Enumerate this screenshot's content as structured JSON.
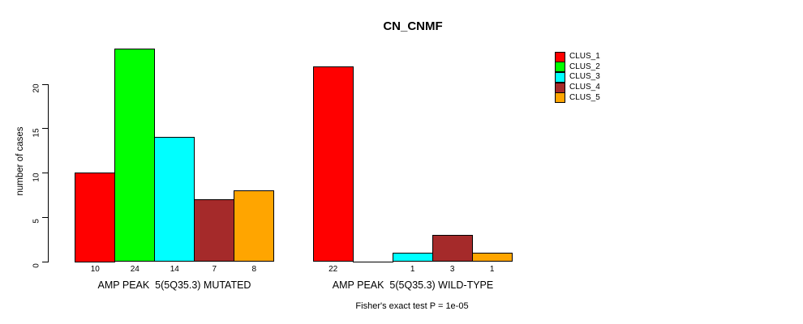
{
  "chart_data": {
    "type": "bar",
    "title": "CN_CNMF",
    "ylabel": "number of cases",
    "ylim": [
      0,
      24
    ],
    "yticks": [
      0,
      5,
      10,
      15,
      20
    ],
    "grid": false,
    "legend_position": "right",
    "series": [
      {
        "name": "CLUS_1",
        "color": "#ff0000"
      },
      {
        "name": "CLUS_2",
        "color": "#00ff00"
      },
      {
        "name": "CLUS_3",
        "color": "#00ffff"
      },
      {
        "name": "CLUS_4",
        "color": "#a52a2a"
      },
      {
        "name": "CLUS_5",
        "color": "#ffa500"
      }
    ],
    "groups": [
      {
        "label": "AMP PEAK  5(5Q35.3) MUTATED",
        "values": [
          10,
          24,
          14,
          7,
          8
        ]
      },
      {
        "label": "AMP PEAK  5(5Q35.3) WILD-TYPE",
        "values": [
          22,
          0,
          1,
          3,
          1
        ]
      }
    ],
    "zero_value_label_hidden": true,
    "footnote": "Fisher's exact test P = 1e-05"
  }
}
